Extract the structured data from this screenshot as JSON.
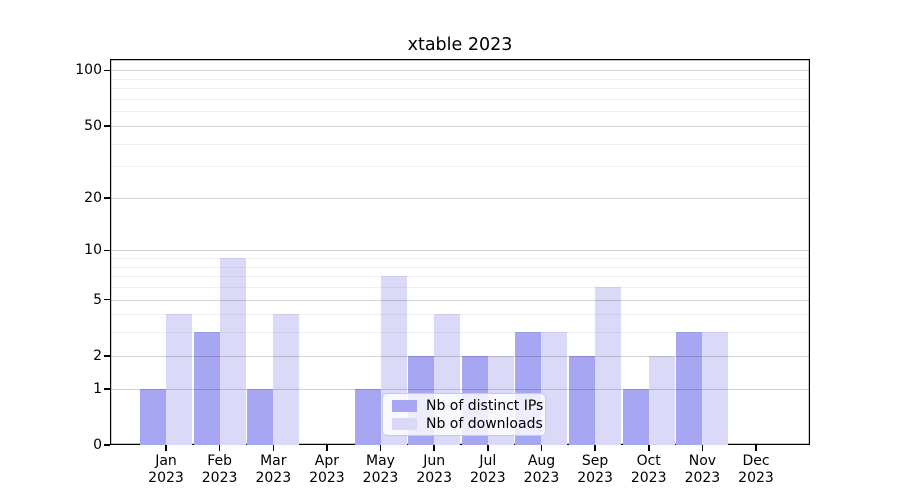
{
  "chart_data": {
    "type": "bar",
    "title": "xtable 2023",
    "y_scale": "log1p",
    "ylim": [
      0,
      115
    ],
    "grid": "horizontal",
    "legend_position": "lower center",
    "x_tick_year": "2023",
    "x_tick_months": [
      "Jan",
      "Feb",
      "Mar",
      "Apr",
      "May",
      "Jun",
      "Jul",
      "Aug",
      "Sep",
      "Oct",
      "Nov",
      "Dec"
    ],
    "categories": [
      "Jan 2023",
      "Feb 2023",
      "Mar 2023",
      "Apr 2023",
      "May 2023",
      "Jun 2023",
      "Jul 2023",
      "Aug 2023",
      "Sep 2023",
      "Oct 2023",
      "Nov 2023",
      "Dec 2023"
    ],
    "y_major_ticks": [
      0,
      1,
      2,
      5,
      10,
      20,
      50,
      100
    ],
    "y_minor_gridlines": [
      3,
      4,
      6,
      7,
      8,
      9,
      30,
      40,
      60,
      70,
      80,
      90
    ],
    "series": [
      {
        "name": "Nb of distinct IPs",
        "color": "#a6a6f2",
        "values": [
          1,
          3,
          1,
          0,
          1,
          2,
          2,
          3,
          2,
          1,
          3,
          0
        ]
      },
      {
        "name": "Nb of downloads",
        "color": "#dadaf8",
        "values": [
          4,
          9,
          4,
          0,
          7,
          4,
          2,
          3,
          6,
          2,
          3,
          0
        ]
      }
    ]
  },
  "colors": {
    "axis": "#000000",
    "major_grid": "#d4d4d4",
    "minor_grid": "#ededed",
    "legend_border": "#cccccc",
    "legend_background": "rgba(255,255,255,0.8)"
  }
}
